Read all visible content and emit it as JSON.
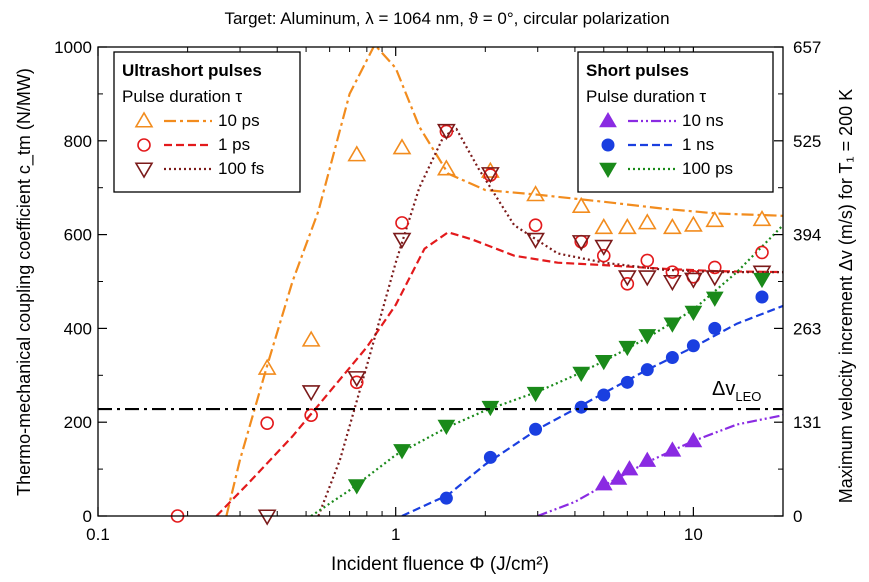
{
  "chart_data": {
    "type": "scatter",
    "title": "Target: Aluminum, λ = 1064 nm, ϑ = 0°, circular polarization",
    "xlabel": "Incident fluence Φ (J/cm²)",
    "ylabel": "Thermo-mechanical coupling coefficient c_tm (N/MW)",
    "y2label": "Maximum velocity increment Δv (m/s) for T₁ = 200 K",
    "xscale": "log",
    "xlim": [
      0.1,
      20
    ],
    "ylim": [
      0,
      1000
    ],
    "x_ticks": [
      0.1,
      1,
      10
    ],
    "x_tick_labels": [
      "0.1",
      "1",
      "10"
    ],
    "y_ticks": [
      0,
      200,
      400,
      600,
      800,
      1000
    ],
    "y_tick_labels": [
      "0",
      "200",
      "400",
      "600",
      "800",
      "1000"
    ],
    "y2_tick_labels": [
      "0",
      "131",
      "263",
      "394",
      "525",
      "657"
    ],
    "reference_line": {
      "label": "Δv_LEO",
      "label_main": "Δv",
      "label_sub": "LEO",
      "y": 228
    },
    "legends": [
      {
        "position": "top-left",
        "title": "Ultrashort pulses",
        "subtitle": "Pulse duration τ",
        "entries": [
          "10 ps",
          "1 ps",
          "100 fs"
        ]
      },
      {
        "position": "top-right",
        "title": "Short pulses",
        "subtitle": "Pulse duration τ",
        "entries": [
          "10 ns",
          "1 ns",
          "100 ps"
        ]
      }
    ],
    "series": [
      {
        "name": "10 ps",
        "color": "#f28c1e",
        "marker": "triangle-up-open",
        "line": "dash-dot",
        "points": [
          [
            0.37,
            315
          ],
          [
            0.52,
            375
          ],
          [
            0.74,
            770
          ],
          [
            1.05,
            785
          ],
          [
            1.48,
            740
          ],
          [
            2.08,
            735
          ],
          [
            2.95,
            685
          ],
          [
            4.2,
            660
          ],
          [
            5.0,
            615
          ],
          [
            6.0,
            615
          ],
          [
            7.0,
            625
          ],
          [
            8.5,
            615
          ],
          [
            10.0,
            620
          ],
          [
            11.8,
            630
          ],
          [
            17.0,
            632
          ]
        ],
        "curve": [
          [
            0.27,
            0
          ],
          [
            0.3,
            120
          ],
          [
            0.37,
            320
          ],
          [
            0.45,
            500
          ],
          [
            0.55,
            650
          ],
          [
            0.7,
            900
          ],
          [
            0.85,
            1005
          ],
          [
            1.0,
            955
          ],
          [
            1.2,
            830
          ],
          [
            1.5,
            730
          ],
          [
            2.0,
            695
          ],
          [
            3.0,
            685
          ],
          [
            5.0,
            670
          ],
          [
            8.0,
            655
          ],
          [
            12.0,
            645
          ],
          [
            20.0,
            640
          ]
        ]
      },
      {
        "name": "1 ps",
        "color": "#e31a1c",
        "marker": "circle-open",
        "line": "dashed",
        "points": [
          [
            0.185,
            0
          ],
          [
            0.37,
            198
          ],
          [
            0.52,
            215
          ],
          [
            0.74,
            285
          ],
          [
            1.05,
            625
          ],
          [
            1.48,
            820
          ],
          [
            2.08,
            727
          ],
          [
            2.95,
            620
          ],
          [
            4.2,
            585
          ],
          [
            5.0,
            555
          ],
          [
            6.0,
            495
          ],
          [
            7.0,
            545
          ],
          [
            8.5,
            520
          ],
          [
            10.0,
            510
          ],
          [
            11.8,
            530
          ],
          [
            17.0,
            562
          ]
        ],
        "curve": [
          [
            0.25,
            0
          ],
          [
            0.32,
            70
          ],
          [
            0.45,
            170
          ],
          [
            0.6,
            265
          ],
          [
            0.8,
            360
          ],
          [
            1.0,
            450
          ],
          [
            1.25,
            570
          ],
          [
            1.5,
            605
          ],
          [
            1.8,
            590
          ],
          [
            2.5,
            555
          ],
          [
            3.5,
            540
          ],
          [
            5.0,
            535
          ],
          [
            8.0,
            527
          ],
          [
            12.0,
            522
          ],
          [
            20.0,
            520
          ]
        ]
      },
      {
        "name": "100 fs",
        "color": "#7b1a1a",
        "marker": "triangle-down-open",
        "line": "dotted",
        "points": [
          [
            0.37,
            0
          ],
          [
            0.52,
            265
          ],
          [
            0.74,
            295
          ],
          [
            1.05,
            590
          ],
          [
            1.48,
            822
          ],
          [
            2.08,
            730
          ],
          [
            2.95,
            590
          ],
          [
            4.2,
            585
          ],
          [
            5.0,
            575
          ],
          [
            6.0,
            510
          ],
          [
            7.0,
            510
          ],
          [
            8.5,
            500
          ],
          [
            10.0,
            505
          ],
          [
            11.8,
            510
          ],
          [
            17.0,
            520
          ]
        ],
        "curve": [
          [
            0.55,
            0
          ],
          [
            0.65,
            120
          ],
          [
            0.8,
            320
          ],
          [
            1.0,
            540
          ],
          [
            1.2,
            700
          ],
          [
            1.45,
            810
          ],
          [
            1.6,
            825
          ],
          [
            1.9,
            740
          ],
          [
            2.5,
            620
          ],
          [
            3.5,
            560
          ],
          [
            5.0,
            540
          ],
          [
            8.0,
            525
          ],
          [
            12.0,
            520
          ],
          [
            20.0,
            520
          ]
        ]
      },
      {
        "name": "10 ns",
        "color": "#8a2be2",
        "marker": "triangle-up-filled",
        "line": "dash-dot-dot",
        "points": [
          [
            5.0,
            68
          ],
          [
            5.6,
            80
          ],
          [
            6.1,
            100
          ],
          [
            7.0,
            118
          ],
          [
            8.5,
            140
          ],
          [
            10.0,
            160
          ]
        ],
        "curve": [
          [
            3.0,
            0
          ],
          [
            4.0,
            30
          ],
          [
            5.0,
            65
          ],
          [
            7.0,
            115
          ],
          [
            10.0,
            160
          ],
          [
            14.0,
            195
          ],
          [
            20.0,
            215
          ]
        ]
      },
      {
        "name": "1 ns",
        "color": "#1a3fe0",
        "marker": "circle-filled",
        "line": "dashed",
        "points": [
          [
            1.48,
            38
          ],
          [
            2.08,
            125
          ],
          [
            2.95,
            185
          ],
          [
            4.2,
            232
          ],
          [
            5.0,
            258
          ],
          [
            6.0,
            285
          ],
          [
            7.0,
            312
          ],
          [
            8.5,
            338
          ],
          [
            10.0,
            363
          ],
          [
            11.8,
            400
          ],
          [
            17.0,
            467
          ]
        ],
        "curve": [
          [
            1.05,
            0
          ],
          [
            1.5,
            45
          ],
          [
            2.0,
            110
          ],
          [
            3.0,
            185
          ],
          [
            4.0,
            228
          ],
          [
            5.0,
            262
          ],
          [
            7.0,
            312
          ],
          [
            10.0,
            360
          ],
          [
            14.0,
            410
          ],
          [
            20.0,
            448
          ]
        ]
      },
      {
        "name": "100 ps",
        "color": "#1a8a1a",
        "marker": "triangle-down-filled",
        "line": "dotted",
        "points": [
          [
            0.74,
            65
          ],
          [
            1.05,
            140
          ],
          [
            1.48,
            192
          ],
          [
            2.08,
            232
          ],
          [
            2.95,
            262
          ],
          [
            4.2,
            305
          ],
          [
            5.0,
            330
          ],
          [
            6.0,
            360
          ],
          [
            7.0,
            385
          ],
          [
            8.5,
            410
          ],
          [
            10.0,
            435
          ],
          [
            11.8,
            465
          ],
          [
            17.0,
            505
          ]
        ],
        "curve": [
          [
            0.52,
            0
          ],
          [
            0.7,
            55
          ],
          [
            1.0,
            130
          ],
          [
            1.5,
            190
          ],
          [
            2.0,
            225
          ],
          [
            3.0,
            265
          ],
          [
            4.0,
            300
          ],
          [
            5.0,
            330
          ],
          [
            7.0,
            380
          ],
          [
            10.0,
            440
          ],
          [
            14.0,
            520
          ],
          [
            20.0,
            620
          ]
        ]
      }
    ]
  }
}
